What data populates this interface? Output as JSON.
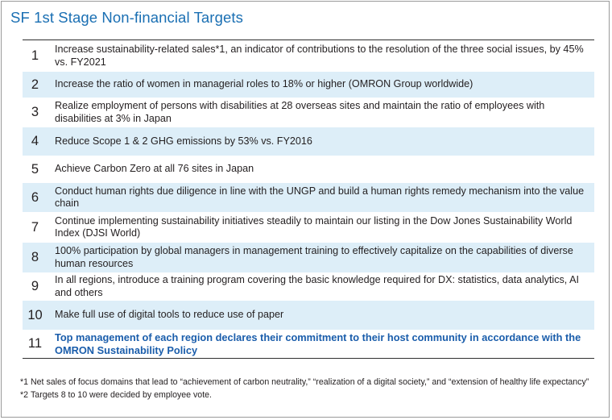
{
  "title": "SF 1st Stage Non-financial Targets",
  "targets": [
    {
      "num": "1",
      "text": "Increase sustainability-related sales*1, an indicator of contributions to the resolution of the three social issues, by 45% vs. FY2021"
    },
    {
      "num": "2",
      "text": "Increase the ratio of women in managerial roles to 18% or higher (OMRON Group worldwide)"
    },
    {
      "num": "3",
      "text": "Realize employment of persons with disabilities at 28 overseas sites and maintain the ratio of employees with disabilities at 3% in Japan"
    },
    {
      "num": "4",
      "text": "Reduce Scope 1 & 2 GHG emissions by 53% vs. FY2016"
    },
    {
      "num": "5",
      "text": "Achieve Carbon Zero at all 76 sites in Japan"
    },
    {
      "num": "6",
      "text": "Conduct human rights due diligence in line with the UNGP and build a human rights remedy mechanism into the value chain"
    },
    {
      "num": "7",
      "text": "Continue implementing sustainability initiatives steadily to maintain our listing in the Dow Jones Sustainability World Index (DJSI World)"
    },
    {
      "num": "8",
      "text": "100% participation by global managers in management training to effectively capitalize on the capabilities of diverse human resources"
    },
    {
      "num": "9",
      "text": "In all regions, introduce a training program covering the basic knowledge required for DX: statistics, data analytics, AI and others"
    },
    {
      "num": "10",
      "text": "Make full use of digital tools to reduce use of paper"
    },
    {
      "num": "11",
      "text": "Top management of each region declares their commitment to their host community in accordance with the OMRON Sustainability Policy"
    }
  ],
  "footnotes": [
    {
      "mark": "*1",
      "text": "Net sales of focus domains that lead to “achievement of carbon neutrality,” “realization of a digital society,” and “extension of healthy life expectancy”"
    },
    {
      "mark": "*2",
      "text": "Targets 8 to 10 were decided by employee vote."
    }
  ],
  "colors": {
    "title": "#1a6fb3",
    "row_shade": "#ddeef8",
    "highlight_text": "#1a5dab"
  }
}
